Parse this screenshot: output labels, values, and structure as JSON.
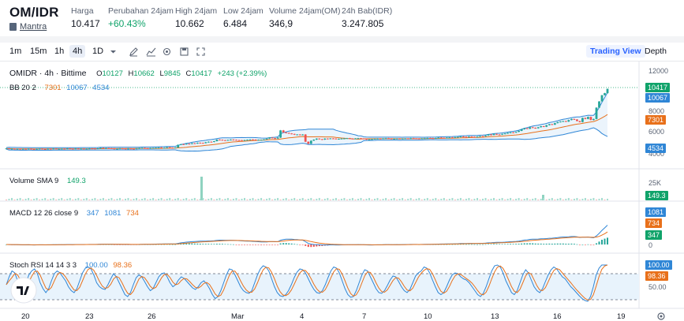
{
  "header": {
    "pair": "OM/IDR",
    "asset_name": "Mantra",
    "stats": [
      {
        "label": "Harga",
        "value": "10.417",
        "up": false
      },
      {
        "label": "Perubahan 24jam",
        "value": "+60.43%",
        "up": true
      },
      {
        "label": "High 24jam",
        "value": "10.662",
        "up": false
      },
      {
        "label": "Low 24jam",
        "value": "6.484",
        "up": false
      },
      {
        "label": "Volume 24jam(OM)",
        "value": "346,9",
        "up": false
      },
      {
        "label": "24h Bab(IDR)",
        "value": "3.247.805",
        "up": false
      }
    ]
  },
  "toolbar": {
    "timeframes": [
      "1m",
      "15m",
      "1h",
      "4h",
      "1D"
    ],
    "active_timeframe": "4h",
    "tools": [
      "chevron-down-icon",
      "pencil-icon",
      "line-chart-icon",
      "indicators-icon",
      "settings-icon",
      "save-icon",
      "fullscreen-icon"
    ],
    "views": [
      "Trading View",
      "Depth"
    ],
    "active_view": "Trading View"
  },
  "chart_data": {
    "type": "candlestick",
    "symbol": "OMIDR · 4h · Bittime",
    "ohlc": {
      "o_label": "O",
      "o": "10127",
      "h_label": "H",
      "h": "10662",
      "l_label": "L",
      "l": "9845",
      "c_label": "C",
      "c": "10417",
      "change": "+243 (+2.39%)"
    },
    "bb": {
      "label": "BB 20 2",
      "basis": "7301",
      "upper": "10067",
      "lower": "4534"
    },
    "volume": {
      "label": "Volume SMA 9",
      "value": "149.3",
      "axis": [
        "25K",
        "0"
      ]
    },
    "macd": {
      "label": "MACD 12 26 close 9",
      "macd": "347",
      "signal": "1081",
      "hist": "734"
    },
    "stoch": {
      "label": "Stoch RSI 14 14 3 3",
      "k": "100.00",
      "d": "98.36"
    },
    "price_axis": [
      "12000",
      "10000",
      "8000",
      "6000",
      "4000"
    ],
    "price_boxes": {
      "last": "10417",
      "upper": "10067",
      "basis": "7301",
      "lower": "4534",
      "volume": "149.3",
      "macd_signal": "1081",
      "macd_hist": "734",
      "macd": "347",
      "stoch_k": "100.00",
      "stoch_d": "98.36",
      "stoch_mid": "50.00"
    },
    "x_labels": [
      "20",
      "23",
      "26",
      "Mar",
      "4",
      "7",
      "10",
      "13",
      "16",
      "19"
    ],
    "closes": [
      4650,
      4600,
      4620,
      4580,
      4610,
      4570,
      4600,
      4590,
      4620,
      4580,
      4560,
      4600,
      4620,
      4590,
      4580,
      4610,
      4600,
      4630,
      4590,
      4600,
      4620,
      4610,
      4650,
      4620,
      4600,
      4640,
      4610,
      4630,
      4600,
      4620,
      4650,
      4640,
      4620,
      4660,
      4700,
      4650,
      4680,
      4660,
      4640,
      4600,
      4620,
      4650,
      4630,
      4610,
      4640,
      4620,
      4600,
      4650,
      4680,
      4700,
      4660,
      4640,
      4680,
      4700,
      4720,
      4740,
      4700,
      4720,
      4760,
      4720,
      4700,
      4740,
      5000,
      5060,
      5050,
      5100,
      5080,
      5150,
      5120,
      5200,
      5180,
      5160,
      5250,
      5300,
      5280,
      5350,
      5500,
      5480,
      5450,
      5420,
      5470,
      5500,
      5480,
      5460,
      5450,
      5430,
      5460,
      5490,
      5520,
      5500,
      5470,
      5480,
      5480,
      5520,
      5600,
      5700,
      5650,
      5600,
      5700,
      6400,
      6200,
      6150,
      6100,
      6050,
      5980,
      6000,
      5950,
      6000,
      5300,
      5100,
      5400,
      5500,
      5600,
      5550,
      5500,
      5600,
      5580,
      5620,
      5600,
      5560,
      5580,
      5600,
      5620,
      5640,
      5600,
      5580,
      5620,
      5640,
      5600,
      5580,
      5500,
      5520,
      5560,
      5580,
      5600,
      5580,
      5620,
      5640,
      5600,
      5560,
      5580,
      5600,
      5580,
      5600,
      5620,
      5600,
      5640,
      5620,
      5600,
      5580,
      5620,
      5640,
      5660,
      5640,
      5620,
      5660,
      5700,
      5680,
      5660,
      5700,
      5720,
      5700,
      5740,
      5760,
      5800,
      5780,
      5760,
      5800,
      5780,
      5760,
      5800,
      5840,
      5820,
      5900,
      6000,
      5950,
      6050,
      6000,
      5980,
      6050,
      6100,
      6150,
      6200,
      6180,
      6250,
      6350,
      6500,
      6600,
      6550,
      6700,
      6650,
      6600,
      6700,
      6800,
      6750,
      6900,
      7000,
      6950,
      7100,
      7200,
      7250,
      7300,
      7250,
      7400,
      7500,
      7450,
      7300,
      7200,
      7600,
      7500,
      7700,
      7400,
      7500,
      8600,
      9200,
      9800,
      10000,
      10417
    ],
    "stoch_k": [
      50,
      70,
      85,
      80,
      60,
      45,
      40,
      55,
      75,
      85,
      90,
      78,
      55,
      40,
      30,
      40,
      60,
      78,
      85,
      80,
      70,
      60,
      45,
      35,
      30,
      40,
      60,
      80,
      92,
      95,
      90,
      75,
      55,
      45,
      40,
      38,
      50,
      65,
      78,
      70,
      55,
      40,
      25,
      20,
      30,
      50,
      68,
      75,
      70,
      58,
      45,
      35,
      40,
      55,
      70,
      78,
      80,
      70,
      55,
      45,
      50,
      62,
      70,
      66,
      58,
      50,
      42,
      38,
      45,
      55,
      60,
      52,
      40,
      25,
      15,
      20,
      35,
      55,
      75,
      90,
      88,
      75,
      60,
      45,
      35,
      30,
      28,
      35,
      55,
      75,
      90,
      98,
      95,
      85,
      65,
      45,
      30,
      22,
      20,
      25,
      35,
      50,
      68,
      82,
      90,
      88,
      80,
      65,
      50,
      38,
      30,
      28,
      35,
      50,
      68,
      85,
      95,
      92,
      80,
      60,
      40,
      25,
      18,
      20,
      35,
      55,
      75,
      88,
      85,
      70,
      55,
      40,
      30,
      28,
      35,
      48,
      62,
      72,
      70,
      58,
      45,
      35,
      30,
      38,
      55,
      72,
      80,
      85,
      95,
      92,
      80,
      62,
      45,
      30,
      25,
      30,
      45,
      62,
      75,
      80,
      78,
      70,
      65,
      62,
      55,
      45,
      35,
      25,
      20,
      28,
      45,
      65,
      85,
      98,
      100,
      95,
      80,
      60,
      45,
      30,
      25,
      35,
      55,
      75,
      88,
      80,
      62,
      45,
      35,
      30,
      40,
      58,
      75,
      88,
      95,
      90,
      80,
      70,
      65,
      55,
      45,
      38,
      30,
      22,
      15,
      10,
      8,
      20,
      45,
      75,
      92,
      100,
      100,
      100
    ]
  }
}
